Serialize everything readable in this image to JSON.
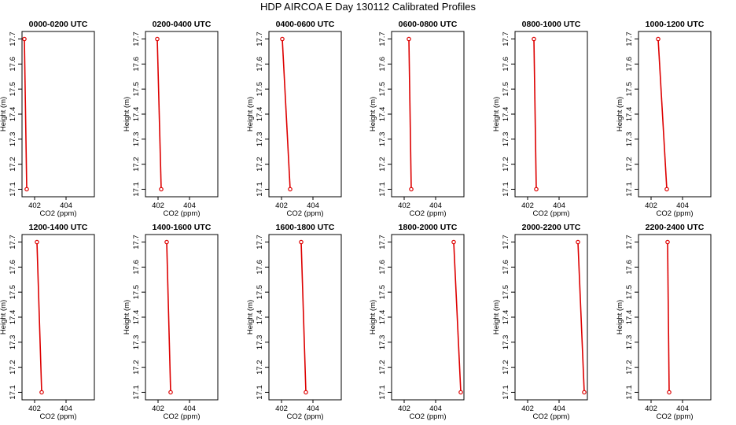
{
  "figure": {
    "title": "HDP AIRCOA E  Day 130112  Calibrated Profiles",
    "line_color": "#dd0000"
  },
  "chart_data": [
    {
      "type": "line",
      "title": "0000-0200 UTC",
      "xlabel": "CO2 (ppm)",
      "ylabel": "Height (m)",
      "xlim": [
        401.2,
        405.8
      ],
      "ylim": [
        17.07,
        17.73
      ],
      "xticks": [
        402,
        404
      ],
      "yticks": [
        17.1,
        17.2,
        17.3,
        17.4,
        17.5,
        17.6,
        17.7
      ],
      "series": [
        {
          "x": [
            401.35,
            401.5
          ],
          "y": [
            17.7,
            17.1
          ]
        }
      ]
    },
    {
      "type": "line",
      "title": "0200-0400 UTC",
      "xlabel": "CO2 (ppm)",
      "ylabel": "Height (m)",
      "xlim": [
        401.2,
        405.8
      ],
      "ylim": [
        17.07,
        17.73
      ],
      "xticks": [
        402,
        404
      ],
      "yticks": [
        17.1,
        17.2,
        17.3,
        17.4,
        17.5,
        17.6,
        17.7
      ],
      "series": [
        {
          "x": [
            401.95,
            402.2
          ],
          "y": [
            17.7,
            17.1
          ]
        }
      ]
    },
    {
      "type": "line",
      "title": "0400-0600 UTC",
      "xlabel": "CO2 (ppm)",
      "ylabel": "Height (m)",
      "xlim": [
        401.2,
        405.8
      ],
      "ylim": [
        17.07,
        17.73
      ],
      "xticks": [
        402,
        404
      ],
      "yticks": [
        17.1,
        17.2,
        17.3,
        17.4,
        17.5,
        17.6,
        17.7
      ],
      "series": [
        {
          "x": [
            402.05,
            402.55
          ],
          "y": [
            17.7,
            17.1
          ]
        }
      ]
    },
    {
      "type": "line",
      "title": "0600-0800 UTC",
      "xlabel": "CO2 (ppm)",
      "ylabel": "Height (m)",
      "xlim": [
        401.2,
        405.8
      ],
      "ylim": [
        17.07,
        17.73
      ],
      "xticks": [
        402,
        404
      ],
      "yticks": [
        17.1,
        17.2,
        17.3,
        17.4,
        17.5,
        17.6,
        17.7
      ],
      "series": [
        {
          "x": [
            402.3,
            402.45
          ],
          "y": [
            17.7,
            17.1
          ]
        }
      ]
    },
    {
      "type": "line",
      "title": "0800-1000 UTC",
      "xlabel": "CO2 (ppm)",
      "ylabel": "Height (m)",
      "xlim": [
        401.2,
        405.8
      ],
      "ylim": [
        17.07,
        17.73
      ],
      "xticks": [
        402,
        404
      ],
      "yticks": [
        17.1,
        17.2,
        17.3,
        17.4,
        17.5,
        17.6,
        17.7
      ],
      "series": [
        {
          "x": [
            402.4,
            402.55
          ],
          "y": [
            17.7,
            17.1
          ]
        }
      ]
    },
    {
      "type": "line",
      "title": "1000-1200 UTC",
      "xlabel": "CO2 (ppm)",
      "ylabel": "Height (m)",
      "xlim": [
        401.2,
        405.8
      ],
      "ylim": [
        17.07,
        17.73
      ],
      "xticks": [
        402,
        404
      ],
      "yticks": [
        17.1,
        17.2,
        17.3,
        17.4,
        17.5,
        17.6,
        17.7
      ],
      "series": [
        {
          "x": [
            402.45,
            403.0
          ],
          "y": [
            17.7,
            17.1
          ]
        }
      ]
    },
    {
      "type": "line",
      "title": "1200-1400 UTC",
      "xlabel": "CO2 (ppm)",
      "ylabel": "Height (m)",
      "xlim": [
        401.2,
        405.8
      ],
      "ylim": [
        17.07,
        17.73
      ],
      "xticks": [
        402,
        404
      ],
      "yticks": [
        17.1,
        17.2,
        17.3,
        17.4,
        17.5,
        17.6,
        17.7
      ],
      "series": [
        {
          "x": [
            402.15,
            402.45
          ],
          "y": [
            17.7,
            17.1
          ]
        }
      ]
    },
    {
      "type": "line",
      "title": "1400-1600 UTC",
      "xlabel": "CO2 (ppm)",
      "ylabel": "Height (m)",
      "xlim": [
        401.2,
        405.8
      ],
      "ylim": [
        17.07,
        17.73
      ],
      "xticks": [
        402,
        404
      ],
      "yticks": [
        17.1,
        17.2,
        17.3,
        17.4,
        17.5,
        17.6,
        17.7
      ],
      "series": [
        {
          "x": [
            402.55,
            402.8
          ],
          "y": [
            17.7,
            17.1
          ]
        }
      ]
    },
    {
      "type": "line",
      "title": "1600-1800 UTC",
      "xlabel": "CO2 (ppm)",
      "ylabel": "Height (m)",
      "xlim": [
        401.2,
        405.8
      ],
      "ylim": [
        17.07,
        17.73
      ],
      "xticks": [
        402,
        404
      ],
      "yticks": [
        17.1,
        17.2,
        17.3,
        17.4,
        17.5,
        17.6,
        17.7
      ],
      "series": [
        {
          "x": [
            403.25,
            403.55
          ],
          "y": [
            17.7,
            17.1
          ]
        }
      ]
    },
    {
      "type": "line",
      "title": "1800-2000 UTC",
      "xlabel": "CO2 (ppm)",
      "ylabel": "Height (m)",
      "xlim": [
        401.2,
        405.8
      ],
      "ylim": [
        17.07,
        17.73
      ],
      "xticks": [
        402,
        404
      ],
      "yticks": [
        17.1,
        17.2,
        17.3,
        17.4,
        17.5,
        17.6,
        17.7
      ],
      "series": [
        {
          "x": [
            405.15,
            405.6
          ],
          "y": [
            17.7,
            17.1
          ]
        }
      ]
    },
    {
      "type": "line",
      "title": "2000-2200 UTC",
      "xlabel": "CO2 (ppm)",
      "ylabel": "Height (m)",
      "xlim": [
        401.2,
        405.8
      ],
      "ylim": [
        17.07,
        17.73
      ],
      "xticks": [
        402,
        404
      ],
      "yticks": [
        17.1,
        17.2,
        17.3,
        17.4,
        17.5,
        17.6,
        17.7
      ],
      "series": [
        {
          "x": [
            405.2,
            405.6
          ],
          "y": [
            17.7,
            17.1
          ]
        }
      ]
    },
    {
      "type": "line",
      "title": "2200-2400 UTC",
      "xlabel": "CO2 (ppm)",
      "ylabel": "Height (m)",
      "xlim": [
        401.2,
        405.8
      ],
      "ylim": [
        17.07,
        17.73
      ],
      "xticks": [
        402,
        404
      ],
      "yticks": [
        17.1,
        17.2,
        17.3,
        17.4,
        17.5,
        17.6,
        17.7
      ],
      "series": [
        {
          "x": [
            403.05,
            403.15
          ],
          "y": [
            17.7,
            17.1
          ]
        }
      ]
    }
  ]
}
